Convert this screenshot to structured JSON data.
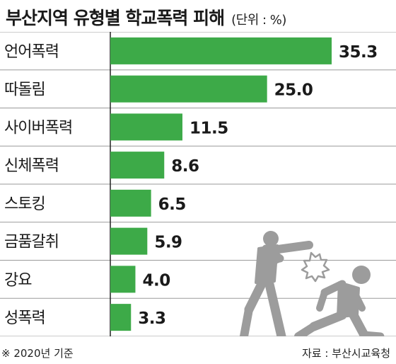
{
  "chart_data": {
    "type": "bar",
    "orientation": "horizontal",
    "title": "부산지역 유형별 학교폭력 피해",
    "unit_label": "(단위 : %)",
    "categories": [
      "언어폭력",
      "따돌림",
      "사이버폭력",
      "신체폭력",
      "스토킹",
      "금품갈취",
      "강요",
      "성폭력"
    ],
    "values": [
      35.3,
      25.0,
      11.5,
      8.6,
      6.5,
      5.9,
      4.0,
      3.3
    ],
    "value_labels": [
      "35.3",
      "25.0",
      "11.5",
      "8.6",
      "6.5",
      "5.9",
      "4.0",
      "3.3"
    ],
    "xlim": [
      0,
      35.3
    ],
    "grid": true,
    "legend": "none",
    "bar_color": "#3daa48",
    "grid_color": "#9a9a9a",
    "figure_color": "#9c9c9c"
  },
  "footer": {
    "note": "※ 2020년 기준",
    "source": "자료 : 부산시교육청"
  },
  "illustration": {
    "name": "two figures fighting pictogram",
    "impact_icon": "impact-burst-icon"
  }
}
